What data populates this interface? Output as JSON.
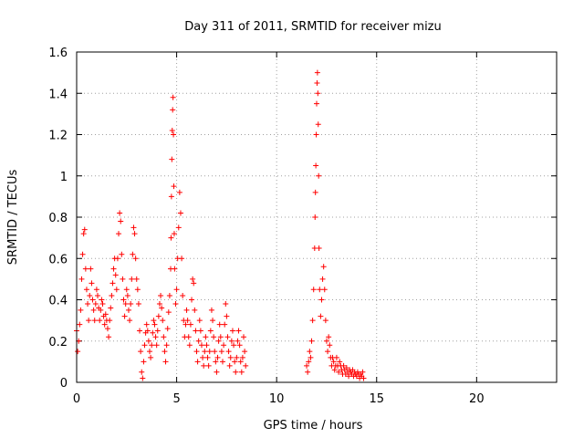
{
  "chart_data": {
    "type": "scatter",
    "title": "Day 311 of 2011, SRMTID for receiver mizu",
    "xlabel": "GPS time / hours",
    "ylabel": "SRMTID / TECUs",
    "xlim": [
      0,
      24
    ],
    "ylim": [
      0,
      1.6
    ],
    "xticks": [
      0,
      5,
      10,
      15,
      20
    ],
    "xtick_labels": [
      "0",
      "5",
      "10",
      "15",
      "20"
    ],
    "yticks": [
      0,
      0.2,
      0.4,
      0.6,
      0.8,
      1.0,
      1.2,
      1.4,
      1.6
    ],
    "ytick_labels": [
      "0",
      "0.2",
      "0.4",
      "0.6",
      "0.8",
      "1",
      "1.2",
      "1.4",
      "1.6"
    ],
    "grid": true,
    "marker": "+",
    "color": "#ff0000",
    "series": [
      {
        "name": "SRMTID",
        "points": [
          [
            0.0,
            0.25
          ],
          [
            0.05,
            0.15
          ],
          [
            0.1,
            0.2
          ],
          [
            0.15,
            0.28
          ],
          [
            0.2,
            0.35
          ],
          [
            0.25,
            0.5
          ],
          [
            0.3,
            0.62
          ],
          [
            0.35,
            0.72
          ],
          [
            0.4,
            0.74
          ],
          [
            0.45,
            0.55
          ],
          [
            0.5,
            0.45
          ],
          [
            0.55,
            0.38
          ],
          [
            0.6,
            0.3
          ],
          [
            0.65,
            0.42
          ],
          [
            0.7,
            0.55
          ],
          [
            0.75,
            0.48
          ],
          [
            0.8,
            0.4
          ],
          [
            0.85,
            0.35
          ],
          [
            0.9,
            0.3
          ],
          [
            0.95,
            0.38
          ],
          [
            1.0,
            0.45
          ],
          [
            1.05,
            0.42
          ],
          [
            1.1,
            0.36
          ],
          [
            1.15,
            0.3
          ],
          [
            1.2,
            0.35
          ],
          [
            1.25,
            0.4
          ],
          [
            1.3,
            0.38
          ],
          [
            1.35,
            0.32
          ],
          [
            1.4,
            0.28
          ],
          [
            1.45,
            0.33
          ],
          [
            1.5,
            0.3
          ],
          [
            1.55,
            0.26
          ],
          [
            1.6,
            0.22
          ],
          [
            1.65,
            0.3
          ],
          [
            1.7,
            0.36
          ],
          [
            1.75,
            0.42
          ],
          [
            1.8,
            0.48
          ],
          [
            1.85,
            0.55
          ],
          [
            1.9,
            0.6
          ],
          [
            1.95,
            0.52
          ],
          [
            2.0,
            0.45
          ],
          [
            2.05,
            0.6
          ],
          [
            2.1,
            0.72
          ],
          [
            2.15,
            0.82
          ],
          [
            2.2,
            0.78
          ],
          [
            2.25,
            0.62
          ],
          [
            2.3,
            0.5
          ],
          [
            2.35,
            0.4
          ],
          [
            2.4,
            0.32
          ],
          [
            2.45,
            0.38
          ],
          [
            2.5,
            0.45
          ],
          [
            2.55,
            0.42
          ],
          [
            2.6,
            0.35
          ],
          [
            2.65,
            0.3
          ],
          [
            2.7,
            0.38
          ],
          [
            2.75,
            0.5
          ],
          [
            2.8,
            0.62
          ],
          [
            2.85,
            0.75
          ],
          [
            2.9,
            0.72
          ],
          [
            2.95,
            0.6
          ],
          [
            3.0,
            0.5
          ],
          [
            3.05,
            0.45
          ],
          [
            3.1,
            0.38
          ],
          [
            3.15,
            0.25
          ],
          [
            3.2,
            0.15
          ],
          [
            3.25,
            0.05
          ],
          [
            3.3,
            0.02
          ],
          [
            3.35,
            0.1
          ],
          [
            3.4,
            0.18
          ],
          [
            3.45,
            0.24
          ],
          [
            3.5,
            0.28
          ],
          [
            3.55,
            0.25
          ],
          [
            3.6,
            0.2
          ],
          [
            3.65,
            0.15
          ],
          [
            3.7,
            0.12
          ],
          [
            3.75,
            0.18
          ],
          [
            3.8,
            0.24
          ],
          [
            3.85,
            0.3
          ],
          [
            3.9,
            0.28
          ],
          [
            3.95,
            0.22
          ],
          [
            4.0,
            0.18
          ],
          [
            4.05,
            0.25
          ],
          [
            4.1,
            0.32
          ],
          [
            4.15,
            0.38
          ],
          [
            4.2,
            0.42
          ],
          [
            4.25,
            0.36
          ],
          [
            4.3,
            0.3
          ],
          [
            4.35,
            0.22
          ],
          [
            4.4,
            0.15
          ],
          [
            4.45,
            0.1
          ],
          [
            4.5,
            0.18
          ],
          [
            4.55,
            0.26
          ],
          [
            4.6,
            0.34
          ],
          [
            4.65,
            0.42
          ],
          [
            4.7,
            0.55
          ],
          [
            4.72,
            0.7
          ],
          [
            4.74,
            0.9
          ],
          [
            4.76,
            1.08
          ],
          [
            4.78,
            1.22
          ],
          [
            4.8,
            1.32
          ],
          [
            4.82,
            1.38
          ],
          [
            4.84,
            1.2
          ],
          [
            4.86,
            0.95
          ],
          [
            4.88,
            0.72
          ],
          [
            4.9,
            0.55
          ],
          [
            4.95,
            0.38
          ],
          [
            5.0,
            0.45
          ],
          [
            5.05,
            0.6
          ],
          [
            5.1,
            0.75
          ],
          [
            5.15,
            0.92
          ],
          [
            5.2,
            0.82
          ],
          [
            5.25,
            0.6
          ],
          [
            5.3,
            0.42
          ],
          [
            5.35,
            0.3
          ],
          [
            5.4,
            0.22
          ],
          [
            5.45,
            0.28
          ],
          [
            5.5,
            0.35
          ],
          [
            5.55,
            0.3
          ],
          [
            5.6,
            0.22
          ],
          [
            5.65,
            0.18
          ],
          [
            5.7,
            0.28
          ],
          [
            5.75,
            0.4
          ],
          [
            5.8,
            0.5
          ],
          [
            5.85,
            0.48
          ],
          [
            5.9,
            0.35
          ],
          [
            5.95,
            0.25
          ],
          [
            6.0,
            0.15
          ],
          [
            6.05,
            0.1
          ],
          [
            6.1,
            0.2
          ],
          [
            6.15,
            0.3
          ],
          [
            6.2,
            0.25
          ],
          [
            6.25,
            0.18
          ],
          [
            6.3,
            0.12
          ],
          [
            6.35,
            0.08
          ],
          [
            6.4,
            0.15
          ],
          [
            6.45,
            0.22
          ],
          [
            6.5,
            0.18
          ],
          [
            6.55,
            0.12
          ],
          [
            6.6,
            0.08
          ],
          [
            6.65,
            0.15
          ],
          [
            6.7,
            0.25
          ],
          [
            6.75,
            0.35
          ],
          [
            6.8,
            0.3
          ],
          [
            6.85,
            0.22
          ],
          [
            6.9,
            0.15
          ],
          [
            6.95,
            0.1
          ],
          [
            7.0,
            0.05
          ],
          [
            7.05,
            0.12
          ],
          [
            7.1,
            0.2
          ],
          [
            7.15,
            0.28
          ],
          [
            7.2,
            0.22
          ],
          [
            7.25,
            0.15
          ],
          [
            7.3,
            0.1
          ],
          [
            7.35,
            0.18
          ],
          [
            7.4,
            0.28
          ],
          [
            7.45,
            0.38
          ],
          [
            7.5,
            0.32
          ],
          [
            7.55,
            0.22
          ],
          [
            7.6,
            0.15
          ],
          [
            7.65,
            0.08
          ],
          [
            7.7,
            0.12
          ],
          [
            7.75,
            0.2
          ],
          [
            7.8,
            0.25
          ],
          [
            7.85,
            0.18
          ],
          [
            7.9,
            0.1
          ],
          [
            7.95,
            0.05
          ],
          [
            8.0,
            0.12
          ],
          [
            8.05,
            0.2
          ],
          [
            8.1,
            0.25
          ],
          [
            8.15,
            0.18
          ],
          [
            8.2,
            0.1
          ],
          [
            8.25,
            0.05
          ],
          [
            8.3,
            0.12
          ],
          [
            8.35,
            0.22
          ],
          [
            8.4,
            0.15
          ],
          [
            8.45,
            0.08
          ],
          [
            11.5,
            0.08
          ],
          [
            11.55,
            0.05
          ],
          [
            11.6,
            0.1
          ],
          [
            11.65,
            0.15
          ],
          [
            11.7,
            0.12
          ],
          [
            11.75,
            0.2
          ],
          [
            11.8,
            0.3
          ],
          [
            11.85,
            0.45
          ],
          [
            11.9,
            0.65
          ],
          [
            11.92,
            0.8
          ],
          [
            11.94,
            0.92
          ],
          [
            11.96,
            1.05
          ],
          [
            11.98,
            1.2
          ],
          [
            12.0,
            1.35
          ],
          [
            12.02,
            1.45
          ],
          [
            12.04,
            1.5
          ],
          [
            12.06,
            1.4
          ],
          [
            12.08,
            1.25
          ],
          [
            12.1,
            1.0
          ],
          [
            12.12,
            0.65
          ],
          [
            12.15,
            0.45
          ],
          [
            12.2,
            0.32
          ],
          [
            12.25,
            0.4
          ],
          [
            12.3,
            0.5
          ],
          [
            12.35,
            0.56
          ],
          [
            12.4,
            0.45
          ],
          [
            12.45,
            0.3
          ],
          [
            12.5,
            0.2
          ],
          [
            12.55,
            0.15
          ],
          [
            12.6,
            0.22
          ],
          [
            12.65,
            0.18
          ],
          [
            12.7,
            0.12
          ],
          [
            12.75,
            0.08
          ],
          [
            12.8,
            0.12
          ],
          [
            12.85,
            0.1
          ],
          [
            12.9,
            0.06
          ],
          [
            12.95,
            0.08
          ],
          [
            13.0,
            0.12
          ],
          [
            13.05,
            0.08
          ],
          [
            13.1,
            0.05
          ],
          [
            13.15,
            0.1
          ],
          [
            13.2,
            0.08
          ],
          [
            13.25,
            0.06
          ],
          [
            13.3,
            0.04
          ],
          [
            13.35,
            0.08
          ],
          [
            13.4,
            0.06
          ],
          [
            13.45,
            0.04
          ],
          [
            13.5,
            0.07
          ],
          [
            13.55,
            0.05
          ],
          [
            13.6,
            0.03
          ],
          [
            13.65,
            0.06
          ],
          [
            13.7,
            0.05
          ],
          [
            13.75,
            0.04
          ],
          [
            13.8,
            0.06
          ],
          [
            13.85,
            0.03
          ],
          [
            13.9,
            0.05
          ],
          [
            13.95,
            0.04
          ],
          [
            14.0,
            0.03
          ],
          [
            14.05,
            0.05
          ],
          [
            14.1,
            0.04
          ],
          [
            14.15,
            0.02
          ],
          [
            14.2,
            0.04
          ],
          [
            14.25,
            0.03
          ],
          [
            14.3,
            0.05
          ],
          [
            14.35,
            0.02
          ]
        ]
      }
    ]
  }
}
